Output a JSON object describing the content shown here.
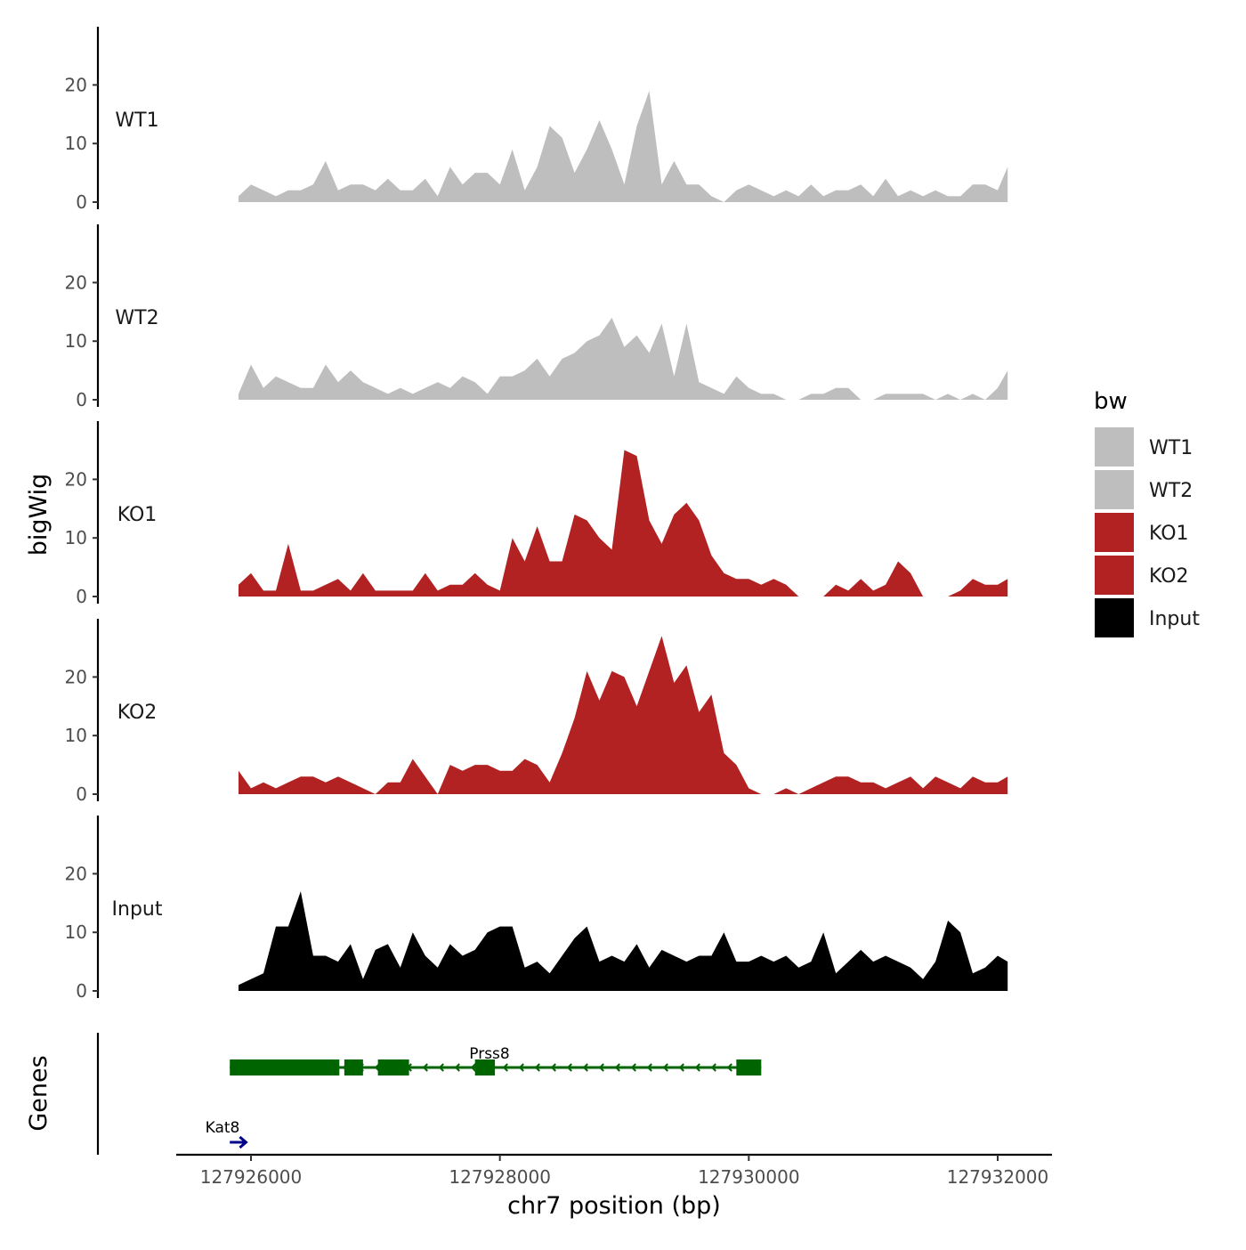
{
  "chart_data": {
    "type": "area",
    "ylabel": "bigWig",
    "xlabel": "chr7 position (bp)",
    "xlim": [
      127925400,
      127932400
    ],
    "x_ticks": [
      127926000,
      127928000,
      127930000,
      127932000
    ],
    "x_tick_labels": [
      "127926000",
      "127928000",
      "127930000",
      "127932000"
    ],
    "ylim": [
      0,
      30
    ],
    "y_ticks": [
      0,
      10,
      20
    ],
    "y_tick_labels": [
      "0",
      "10",
      "20"
    ],
    "track_height_max": 30,
    "legend": {
      "title": "bw",
      "placement": "right",
      "entries": [
        {
          "label": "WT1",
          "color": "#bebebe"
        },
        {
          "label": "WT2",
          "color": "#bebebe"
        },
        {
          "label": "KO1",
          "color": "#b22222"
        },
        {
          "label": "KO2",
          "color": "#b22222"
        },
        {
          "label": "Input",
          "color": "#000000"
        }
      ]
    },
    "series": [
      {
        "name": "WT1",
        "label": "WT1",
        "color": "#bebebe",
        "x": [
          127925900,
          127926000,
          127926100,
          127926200,
          127926300,
          127926400,
          127926500,
          127926600,
          127926700,
          127926800,
          127926900,
          127927000,
          127927100,
          127927200,
          127927300,
          127927400,
          127927500,
          127927600,
          127927700,
          127927800,
          127927900,
          127928000,
          127928100,
          127928200,
          127928300,
          127928400,
          127928500,
          127928600,
          127928700,
          127928800,
          127928900,
          127929000,
          127929100,
          127929200,
          127929300,
          127929400,
          127929500,
          127929600,
          127929700,
          127929800,
          127929900,
          127930000,
          127930100,
          127930200,
          127930300,
          127930400,
          127930500,
          127930600,
          127930700,
          127930800,
          127930900,
          127931000,
          127931100,
          127931200,
          127931300,
          127931400,
          127931500,
          127931600,
          127931700,
          127931800,
          127931900,
          127932000,
          127932080
        ],
        "y": [
          1,
          3,
          2,
          1,
          2,
          2,
          3,
          7,
          2,
          3,
          3,
          2,
          4,
          2,
          2,
          4,
          1,
          6,
          3,
          5,
          5,
          3,
          9,
          2,
          6,
          13,
          11,
          5,
          9,
          14,
          9,
          3,
          13,
          19,
          3,
          7,
          3,
          3,
          1,
          0,
          2,
          3,
          2,
          1,
          2,
          1,
          3,
          1,
          2,
          2,
          3,
          1,
          4,
          1,
          2,
          1,
          2,
          1,
          1,
          3,
          3,
          2,
          6
        ]
      },
      {
        "name": "WT2",
        "label": "WT2",
        "color": "#bebebe",
        "x": [
          127925900,
          127926000,
          127926100,
          127926200,
          127926300,
          127926400,
          127926500,
          127926600,
          127926700,
          127926800,
          127926900,
          127927000,
          127927100,
          127927200,
          127927300,
          127927400,
          127927500,
          127927600,
          127927700,
          127927800,
          127927900,
          127928000,
          127928100,
          127928200,
          127928300,
          127928400,
          127928500,
          127928600,
          127928700,
          127928800,
          127928900,
          127929000,
          127929100,
          127929200,
          127929300,
          127929400,
          127929500,
          127929600,
          127929700,
          127929800,
          127929900,
          127930000,
          127930100,
          127930200,
          127930300,
          127930400,
          127930500,
          127930600,
          127930700,
          127930800,
          127930900,
          127931000,
          127931100,
          127931200,
          127931300,
          127931400,
          127931500,
          127931600,
          127931700,
          127931800,
          127931900,
          127932000,
          127932080
        ],
        "y": [
          1,
          6,
          2,
          4,
          3,
          2,
          2,
          6,
          3,
          5,
          3,
          2,
          1,
          2,
          1,
          2,
          3,
          2,
          4,
          3,
          1,
          4,
          4,
          5,
          7,
          4,
          7,
          8,
          10,
          11,
          14,
          9,
          11,
          8,
          13,
          4,
          13,
          3,
          2,
          1,
          4,
          2,
          1,
          1,
          0,
          0,
          1,
          1,
          2,
          2,
          0,
          0,
          1,
          1,
          1,
          1,
          0,
          1,
          0,
          1,
          0,
          2,
          5
        ]
      },
      {
        "name": "KO1",
        "label": "KO1",
        "color": "#b22222",
        "x": [
          127925900,
          127926000,
          127926100,
          127926200,
          127926300,
          127926400,
          127926500,
          127926600,
          127926700,
          127926800,
          127926900,
          127927000,
          127927100,
          127927200,
          127927300,
          127927400,
          127927500,
          127927600,
          127927700,
          127927800,
          127927900,
          127928000,
          127928100,
          127928200,
          127928300,
          127928400,
          127928500,
          127928600,
          127928700,
          127928800,
          127928900,
          127929000,
          127929100,
          127929200,
          127929300,
          127929400,
          127929500,
          127929600,
          127929700,
          127929800,
          127929900,
          127930000,
          127930100,
          127930200,
          127930300,
          127930400,
          127930500,
          127930600,
          127930700,
          127930800,
          127930900,
          127931000,
          127931100,
          127931200,
          127931300,
          127931400,
          127931500,
          127931600,
          127931700,
          127931800,
          127931900,
          127932000,
          127932080
        ],
        "y": [
          2,
          4,
          1,
          1,
          9,
          1,
          1,
          2,
          3,
          1,
          4,
          1,
          1,
          1,
          1,
          4,
          1,
          2,
          2,
          4,
          2,
          1,
          10,
          6,
          12,
          6,
          6,
          14,
          13,
          10,
          8,
          25,
          24,
          13,
          9,
          14,
          16,
          13,
          7,
          4,
          3,
          3,
          2,
          3,
          2,
          0,
          0,
          0,
          2,
          1,
          3,
          1,
          2,
          6,
          4,
          0,
          0,
          0,
          1,
          3,
          2,
          2,
          3
        ]
      },
      {
        "name": "KO2",
        "label": "KO2",
        "color": "#b22222",
        "x": [
          127925900,
          127926000,
          127926100,
          127926200,
          127926300,
          127926400,
          127926500,
          127926600,
          127926700,
          127926800,
          127926900,
          127927000,
          127927100,
          127927200,
          127927300,
          127927400,
          127927500,
          127927600,
          127927700,
          127927800,
          127927900,
          127928000,
          127928100,
          127928200,
          127928300,
          127928400,
          127928500,
          127928600,
          127928700,
          127928800,
          127928900,
          127929000,
          127929100,
          127929200,
          127929300,
          127929400,
          127929500,
          127929600,
          127929700,
          127929800,
          127929900,
          127930000,
          127930100,
          127930200,
          127930300,
          127930400,
          127930500,
          127930600,
          127930700,
          127930800,
          127930900,
          127931000,
          127931100,
          127931200,
          127931300,
          127931400,
          127931500,
          127931600,
          127931700,
          127931800,
          127931900,
          127932000,
          127932080
        ],
        "y": [
          4,
          1,
          2,
          1,
          2,
          3,
          3,
          2,
          3,
          2,
          1,
          0,
          2,
          2,
          6,
          3,
          0,
          5,
          4,
          5,
          5,
          4,
          4,
          6,
          5,
          2,
          7,
          13,
          21,
          16,
          21,
          20,
          15,
          21,
          27,
          19,
          22,
          14,
          17,
          7,
          5,
          1,
          0,
          0,
          1,
          0,
          1,
          2,
          3,
          3,
          2,
          2,
          1,
          2,
          3,
          1,
          3,
          2,
          1,
          3,
          2,
          2,
          3
        ]
      },
      {
        "name": "Input",
        "label": "Input",
        "color": "#000000",
        "x": [
          127925900,
          127926000,
          127926100,
          127926200,
          127926300,
          127926400,
          127926500,
          127926600,
          127926700,
          127926800,
          127926900,
          127927000,
          127927100,
          127927200,
          127927300,
          127927400,
          127927500,
          127927600,
          127927700,
          127927800,
          127927900,
          127928000,
          127928100,
          127928200,
          127928300,
          127928400,
          127928500,
          127928600,
          127928700,
          127928800,
          127928900,
          127929000,
          127929100,
          127929200,
          127929300,
          127929400,
          127929500,
          127929600,
          127929700,
          127929800,
          127929900,
          127930000,
          127930100,
          127930200,
          127930300,
          127930400,
          127930500,
          127930600,
          127930700,
          127930800,
          127930900,
          127931000,
          127931100,
          127931200,
          127931300,
          127931400,
          127931500,
          127931600,
          127931700,
          127931800,
          127931900,
          127932000,
          127932080
        ],
        "y": [
          1,
          2,
          3,
          11,
          11,
          17,
          6,
          6,
          5,
          8,
          2,
          7,
          8,
          4,
          10,
          6,
          4,
          8,
          6,
          7,
          10,
          11,
          11,
          4,
          5,
          3,
          6,
          9,
          11,
          5,
          6,
          5,
          8,
          4,
          7,
          6,
          5,
          6,
          6,
          10,
          5,
          5,
          6,
          5,
          6,
          4,
          5,
          10,
          3,
          5,
          7,
          5,
          6,
          5,
          4,
          2,
          5,
          12,
          10,
          3,
          4,
          6,
          5
        ]
      }
    ],
    "genes": [
      {
        "name": "Prss8",
        "strand": "-",
        "start": 127925830,
        "end": 127930100,
        "exons": [
          [
            127925830,
            127926710
          ],
          [
            127926750,
            127926900
          ],
          [
            127927020,
            127927270
          ],
          [
            127927800,
            127927960
          ],
          [
            127929900,
            127930100
          ]
        ],
        "color": "#006400"
      },
      {
        "name": "Kat8",
        "strand": "+",
        "start": 127925830,
        "end": 127925960,
        "exons": [],
        "color": "#00008b"
      }
    ],
    "genes_track_label": "Genes"
  }
}
